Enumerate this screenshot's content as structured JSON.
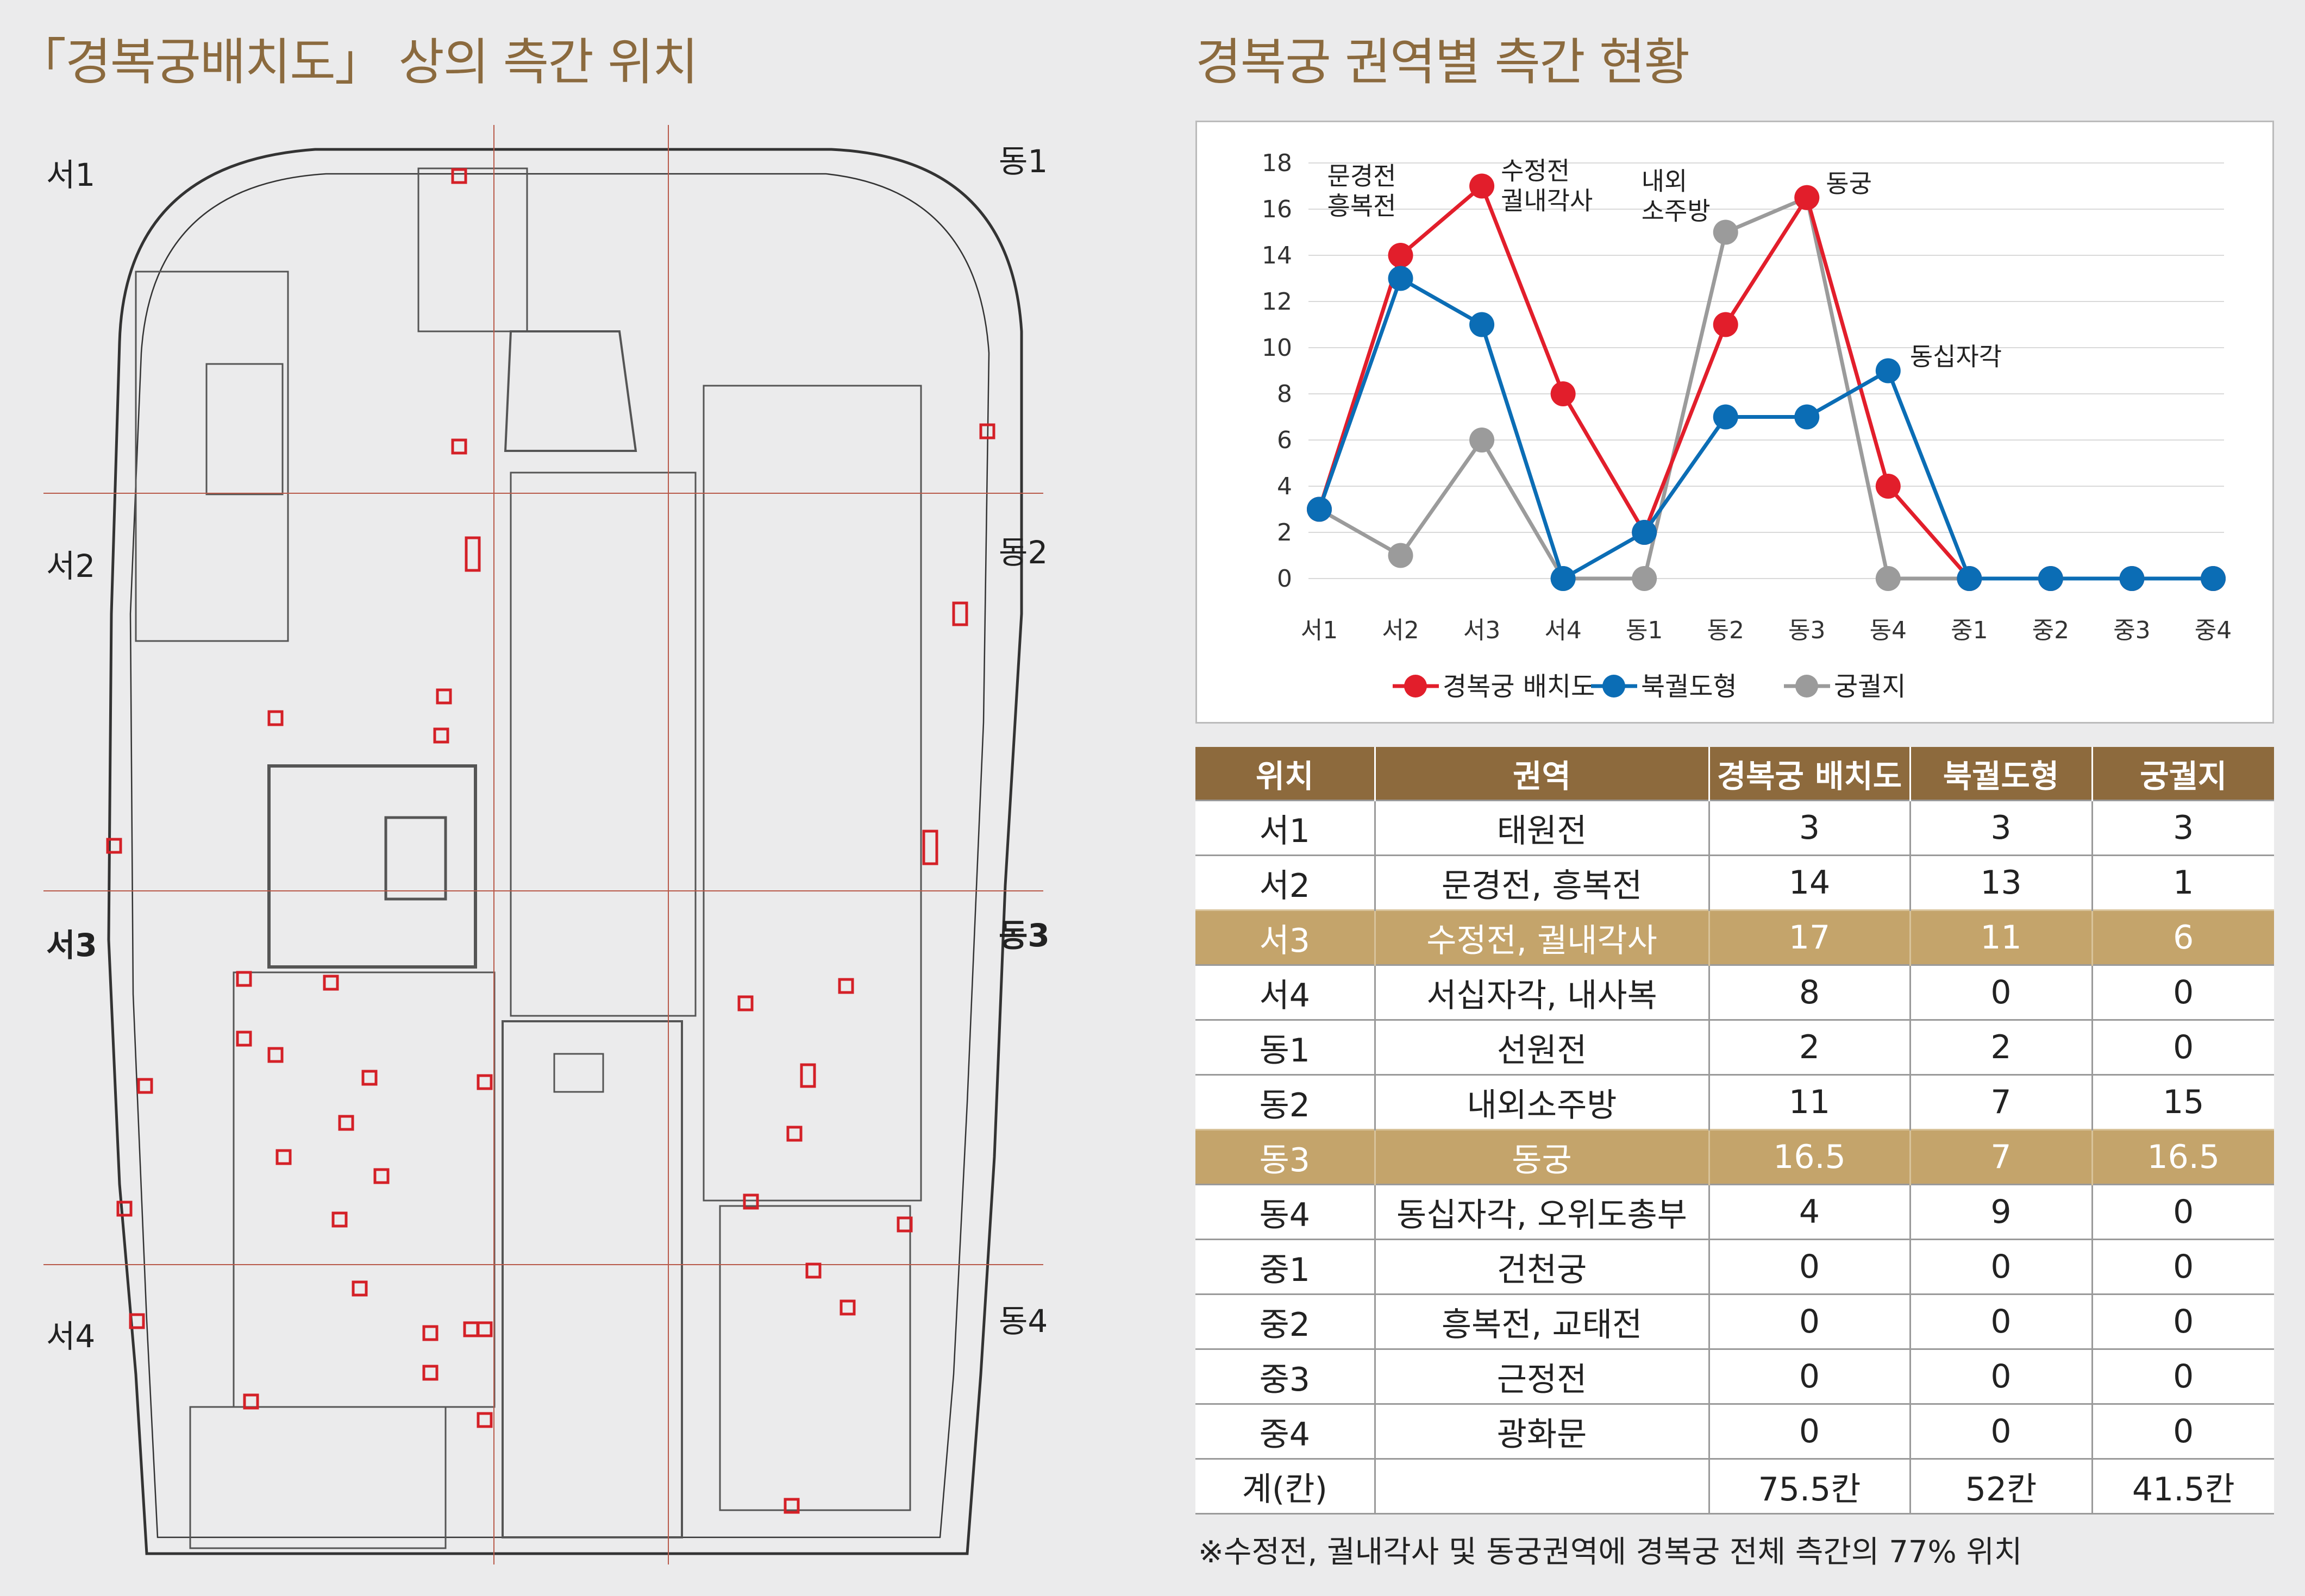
{
  "titles": {
    "left": "「경복궁배치도」 상의 측간 위치",
    "right": "경복궁 권역별 측간 현황"
  },
  "map_labels": [
    {
      "text": "서1",
      "bold": false
    },
    {
      "text": "동1",
      "bold": false
    },
    {
      "text": "서2",
      "bold": false
    },
    {
      "text": "동2",
      "bold": false
    },
    {
      "text": "서3",
      "bold": true
    },
    {
      "text": "동3",
      "bold": true
    },
    {
      "text": "서4",
      "bold": false
    },
    {
      "text": "동4",
      "bold": false
    }
  ],
  "chart_data": {
    "type": "line",
    "categories": [
      "서1",
      "서2",
      "서3",
      "서4",
      "동1",
      "동2",
      "동3",
      "동4",
      "중1",
      "중2",
      "중3",
      "중4"
    ],
    "ylim": [
      0,
      18
    ],
    "yticks": [
      0,
      2,
      4,
      6,
      8,
      10,
      12,
      14,
      16,
      18
    ],
    "grid": true,
    "legend": "bottom",
    "series": [
      {
        "name": "경복궁 배치도",
        "color": "#e21e2b",
        "values": [
          3,
          14,
          17,
          8,
          2,
          11,
          16.5,
          4,
          0,
          0,
          0,
          0
        ]
      },
      {
        "name": "북궐도형",
        "color": "#0b6db5",
        "values": [
          3,
          13,
          11,
          0,
          2,
          7,
          7,
          9,
          0,
          0,
          0,
          0
        ]
      },
      {
        "name": "궁궐지",
        "color": "#9b9b9b",
        "values": [
          3,
          1,
          6,
          0,
          0,
          15,
          16.5,
          0,
          0,
          0,
          0,
          0
        ]
      }
    ],
    "annotations": [
      {
        "lines": [
          "문경전",
          "흥복전"
        ],
        "x": "서2",
        "y": 14
      },
      {
        "lines": [
          "수정전",
          "궐내각사"
        ],
        "x": "서3",
        "y": 17
      },
      {
        "lines": [
          "내외",
          "소주방"
        ],
        "x": "동2",
        "y": 15
      },
      {
        "lines": [
          "동궁"
        ],
        "x": "동3",
        "y": 16.5
      },
      {
        "lines": [
          "동십자각"
        ],
        "x": "동4",
        "y": 9
      }
    ]
  },
  "table": {
    "headers": [
      "위치",
      "권역",
      "경복궁 배치도",
      "북궐도형",
      "궁궐지"
    ],
    "rows": [
      {
        "cells": [
          "서1",
          "태원전",
          "3",
          "3",
          "3"
        ],
        "highlight": false
      },
      {
        "cells": [
          "서2",
          "문경전, 흥복전",
          "14",
          "13",
          "1"
        ],
        "highlight": false
      },
      {
        "cells": [
          "서3",
          "수정전, 궐내각사",
          "17",
          "11",
          "6"
        ],
        "highlight": true
      },
      {
        "cells": [
          "서4",
          "서십자각, 내사복",
          "8",
          "0",
          "0"
        ],
        "highlight": false
      },
      {
        "cells": [
          "동1",
          "선원전",
          "2",
          "2",
          "0"
        ],
        "highlight": false
      },
      {
        "cells": [
          "동2",
          "내외소주방",
          "11",
          "7",
          "15"
        ],
        "highlight": false
      },
      {
        "cells": [
          "동3",
          "동궁",
          "16.5",
          "7",
          "16.5"
        ],
        "highlight": true
      },
      {
        "cells": [
          "동4",
          "동십자각, 오위도총부",
          "4",
          "9",
          "0"
        ],
        "highlight": false
      },
      {
        "cells": [
          "중1",
          "건천궁",
          "0",
          "0",
          "0"
        ],
        "highlight": false
      },
      {
        "cells": [
          "중2",
          "흥복전, 교태전",
          "0",
          "0",
          "0"
        ],
        "highlight": false
      },
      {
        "cells": [
          "중3",
          "근정전",
          "0",
          "0",
          "0"
        ],
        "highlight": false
      },
      {
        "cells": [
          "중4",
          "광화문",
          "0",
          "0",
          "0"
        ],
        "highlight": false
      }
    ],
    "total": [
      "계(칸)",
      "",
      "75.5칸",
      "52칸",
      "41.5칸"
    ]
  },
  "footnote": "※수정전, 궐내각사 및 동궁권역에 경복궁 전체 측간의 77% 위치"
}
